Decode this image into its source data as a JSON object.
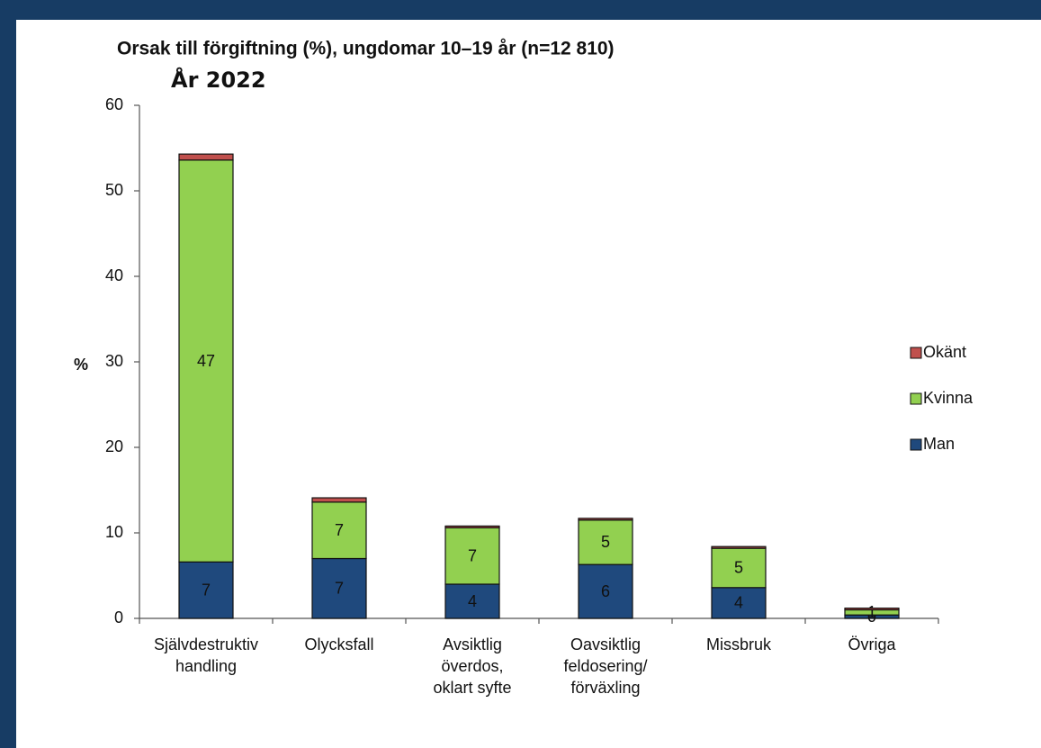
{
  "chart_data": {
    "type": "stacked-bar",
    "title": "Orsak till förgiftning (%), ungdomar 10–19 år (n=12 810)",
    "subtitle": "År 2022",
    "ylabel": "%",
    "categories": [
      "Självdestruktiv\nhandling",
      "Olycksfall",
      "Avsiktlig\növerdos,\noklart syfte",
      "Oavsiktlig\nfeldosering/\nförväxling",
      "Missbruk",
      "Övriga"
    ],
    "series": [
      {
        "name": "Man",
        "color": "#1f497d",
        "values": [
          6.6,
          7.0,
          4.0,
          6.3,
          3.6,
          0.4
        ],
        "value_labels": [
          "7",
          "7",
          "4",
          "6",
          "4",
          "0"
        ]
      },
      {
        "name": "Kvinna",
        "color": "#92d050",
        "values": [
          47.0,
          6.6,
          6.6,
          5.2,
          4.6,
          0.6
        ],
        "value_labels": [
          "47",
          "7",
          "7",
          "5",
          "5",
          "1"
        ]
      },
      {
        "name": "Okänt",
        "color": "#c0504d",
        "values": [
          0.7,
          0.5,
          0.2,
          0.2,
          0.2,
          0.2
        ]
      }
    ],
    "ylim": [
      0,
      60
    ],
    "yticks": [
      0,
      10,
      20,
      30,
      40,
      50,
      60
    ],
    "legend": "right"
  }
}
